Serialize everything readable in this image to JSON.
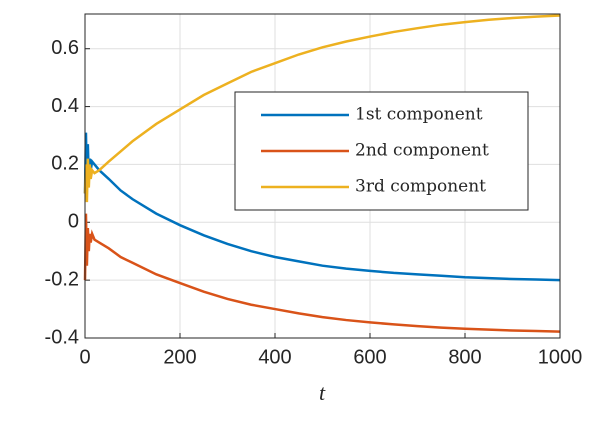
{
  "chart_data": {
    "type": "line",
    "x_label": "t",
    "x": [
      0,
      2,
      4,
      6,
      8,
      10,
      12,
      15,
      20,
      30,
      50,
      75,
      100,
      150,
      200,
      250,
      300,
      350,
      400,
      450,
      500,
      550,
      600,
      650,
      700,
      750,
      800,
      850,
      900,
      950,
      1000
    ],
    "series": [
      {
        "name": "1st component",
        "color": "#0072bd",
        "values": [
          0.1,
          0.31,
          0.12,
          0.27,
          0.15,
          0.22,
          0.18,
          0.21,
          0.2,
          0.18,
          0.15,
          0.11,
          0.08,
          0.03,
          -0.01,
          -0.045,
          -0.075,
          -0.1,
          -0.12,
          -0.135,
          -0.15,
          -0.16,
          -0.168,
          -0.175,
          -0.18,
          -0.185,
          -0.19,
          -0.193,
          -0.196,
          -0.198,
          -0.2
        ]
      },
      {
        "name": "2nd component",
        "color": "#d95319",
        "values": [
          -0.2,
          0.03,
          -0.15,
          -0.02,
          -0.1,
          -0.04,
          -0.07,
          -0.04,
          -0.06,
          -0.07,
          -0.09,
          -0.12,
          -0.14,
          -0.18,
          -0.21,
          -0.24,
          -0.265,
          -0.285,
          -0.3,
          -0.315,
          -0.328,
          -0.338,
          -0.346,
          -0.353,
          -0.359,
          -0.364,
          -0.368,
          -0.371,
          -0.374,
          -0.376,
          -0.378
        ]
      },
      {
        "name": "3rd component",
        "color": "#edb120",
        "values": [
          0.1,
          0.2,
          0.07,
          0.22,
          0.12,
          0.2,
          0.15,
          0.18,
          0.17,
          0.18,
          0.21,
          0.245,
          0.28,
          0.34,
          0.39,
          0.44,
          0.48,
          0.52,
          0.55,
          0.58,
          0.605,
          0.625,
          0.642,
          0.658,
          0.671,
          0.683,
          0.692,
          0.7,
          0.706,
          0.711,
          0.715
        ]
      }
    ],
    "xlim": [
      0,
      1000
    ],
    "xticks": [
      0,
      200,
      400,
      600,
      800,
      1000
    ],
    "ylim": [
      -0.4,
      0.72
    ],
    "yticks": [
      -0.4,
      -0.2,
      0,
      0.2,
      0.4,
      0.6
    ],
    "grid": true,
    "legend_position": "east"
  }
}
